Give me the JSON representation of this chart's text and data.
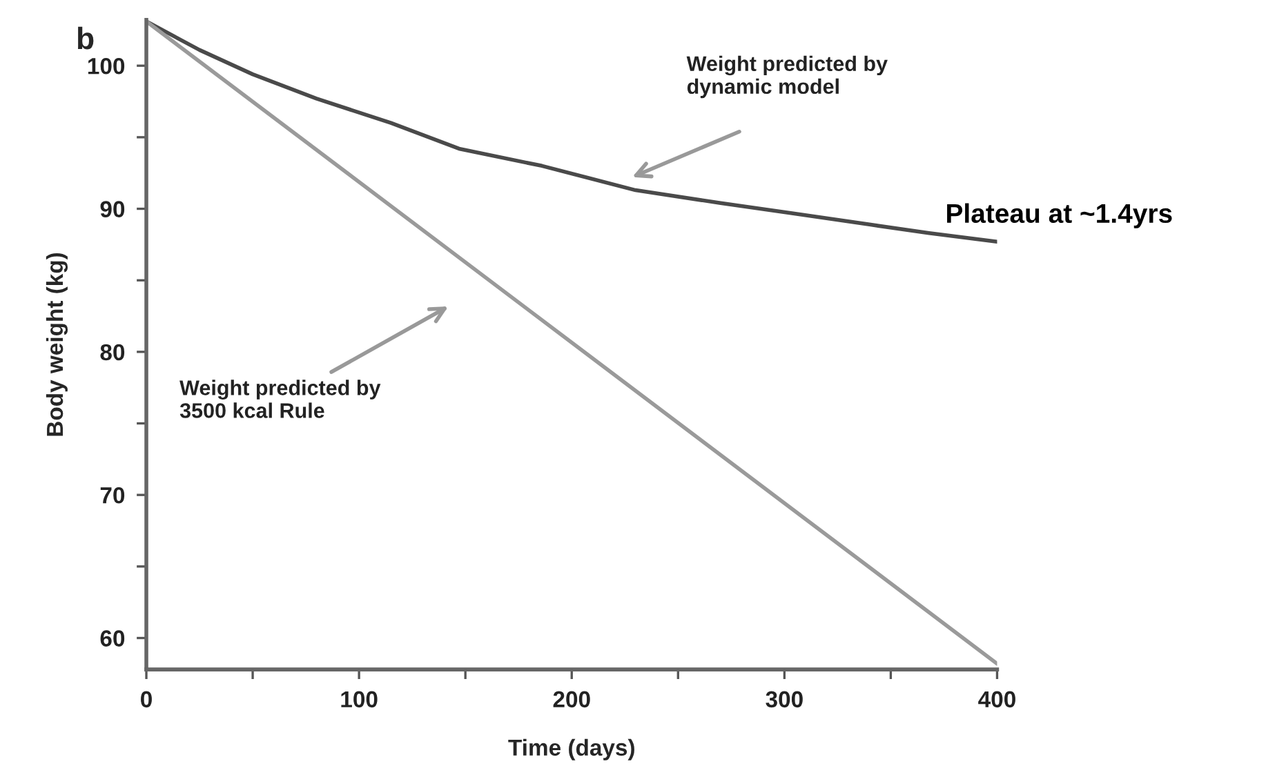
{
  "chart_data": {
    "type": "line",
    "xlabel": "Time (days)",
    "ylabel": "Body weight (kg)",
    "series": [
      {
        "color": "#4a4a4a",
        "x": [
          0,
          25,
          50,
          80,
          115,
          147,
          186,
          230,
          270,
          303,
          340,
          368,
          400
        ],
        "values": [
          103.1,
          101.1,
          99.4,
          97.7,
          96.0,
          94.2,
          93.0,
          91.3,
          90.4,
          89.7,
          88.9,
          88.3,
          87.7
        ]
      },
      {
        "color": "#9a9a9a",
        "x": [
          0,
          400
        ],
        "values": [
          103.1,
          58.2
        ]
      }
    ],
    "xlim": [
      0,
      400
    ],
    "ylim": [
      57.8,
      103.2
    ],
    "xticks": [
      0,
      {
        "value": 50,
        "label": null
      },
      100,
      {
        "value": 150,
        "label": null
      },
      200,
      {
        "value": 250,
        "label": null
      },
      300,
      {
        "value": 350,
        "label": null
      },
      400
    ],
    "yticks": [
      60,
      {
        "value": 65,
        "label": null
      },
      70,
      {
        "value": 75,
        "label": null
      },
      80,
      {
        "value": 85,
        "label": null
      },
      90,
      {
        "value": 95,
        "label": null
      },
      100
    ],
    "annotations": [
      "b",
      "Weight predicted by\ndynamic model",
      "Weight predicted by\n3500 kcal Rule",
      {
        "text": "Plateau at ~1.4yrs",
        "x": 400,
        "y": 87.7
      }
    ],
    "grid": false,
    "legend": false,
    "marker": "none",
    "line_style": "solid"
  }
}
